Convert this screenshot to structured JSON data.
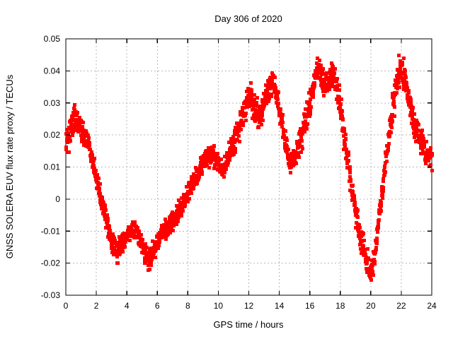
{
  "window": {
    "background_color": "#ffffff",
    "text_color": "#000000",
    "grid_color": "#b8b8b8",
    "border_color": "#000000"
  },
  "chart_data": {
    "type": "scatter",
    "title": "Day 306 of 2020",
    "xlabel": "GPS time / hours",
    "ylabel": "GNSS SOLERA EUV flux rate proxy / TECUs",
    "xlim": [
      0,
      24
    ],
    "ylim": [
      -0.03,
      0.05
    ],
    "x_tick_values": [
      0,
      2,
      4,
      6,
      8,
      10,
      12,
      14,
      16,
      18,
      20,
      22,
      24
    ],
    "x_tick_labels": [
      "0",
      "2",
      "4",
      "6",
      "8",
      "10",
      "12",
      "14",
      "16",
      "18",
      "20",
      "22",
      "24"
    ],
    "y_tick_values": [
      -0.03,
      -0.02,
      -0.01,
      0,
      0.01,
      0.02,
      0.03,
      0.04,
      0.05
    ],
    "y_tick_labels": [
      "-0.03",
      "-0.02",
      "-0.01",
      "0",
      "0.01",
      "0.02",
      "0.03",
      "0.04",
      "0.05"
    ],
    "grid": "dashed-gray",
    "legend": "none",
    "marker": "filled-square",
    "marker_color": "#ff0000",
    "marker_size_px": 5,
    "series": [
      {
        "anchor_format": [
          "gps_hour",
          "value_TECUs",
          "band_spread_TECUs"
        ],
        "anchors": [
          [
            0.0,
            0.018,
            0.005
          ],
          [
            0.3,
            0.022,
            0.004
          ],
          [
            0.6,
            0.026,
            0.004
          ],
          [
            0.9,
            0.023,
            0.0035
          ],
          [
            1.2,
            0.02,
            0.003
          ],
          [
            1.5,
            0.016,
            0.003
          ],
          [
            1.8,
            0.011,
            0.003
          ],
          [
            2.1,
            0.004,
            0.003
          ],
          [
            2.4,
            -0.002,
            0.003
          ],
          [
            2.7,
            -0.008,
            0.003
          ],
          [
            3.0,
            -0.014,
            0.004
          ],
          [
            3.3,
            -0.017,
            0.004
          ],
          [
            3.6,
            -0.014,
            0.0035
          ],
          [
            3.9,
            -0.012,
            0.003
          ],
          [
            4.2,
            -0.01,
            0.003
          ],
          [
            4.5,
            -0.009,
            0.003
          ],
          [
            4.8,
            -0.012,
            0.003
          ],
          [
            5.1,
            -0.016,
            0.003
          ],
          [
            5.4,
            -0.019,
            0.003
          ],
          [
            5.7,
            -0.017,
            0.003
          ],
          [
            6.0,
            -0.013,
            0.003
          ],
          [
            6.4,
            -0.01,
            0.003
          ],
          [
            6.8,
            -0.008,
            0.003
          ],
          [
            7.2,
            -0.005,
            0.003
          ],
          [
            7.6,
            -0.002,
            0.003
          ],
          [
            8.0,
            0.002,
            0.003
          ],
          [
            8.4,
            0.006,
            0.003
          ],
          [
            8.8,
            0.01,
            0.003
          ],
          [
            9.2,
            0.013,
            0.0035
          ],
          [
            9.6,
            0.014,
            0.0035
          ],
          [
            10.0,
            0.011,
            0.003
          ],
          [
            10.3,
            0.009,
            0.003
          ],
          [
            10.6,
            0.013,
            0.003
          ],
          [
            11.0,
            0.018,
            0.004
          ],
          [
            11.4,
            0.023,
            0.0045
          ],
          [
            11.8,
            0.03,
            0.005
          ],
          [
            12.1,
            0.032,
            0.0045
          ],
          [
            12.5,
            0.026,
            0.004
          ],
          [
            12.8,
            0.027,
            0.004
          ],
          [
            13.1,
            0.032,
            0.004
          ],
          [
            13.4,
            0.036,
            0.0035
          ],
          [
            13.7,
            0.035,
            0.0035
          ],
          [
            14.0,
            0.028,
            0.004
          ],
          [
            14.3,
            0.02,
            0.004
          ],
          [
            14.6,
            0.013,
            0.003
          ],
          [
            14.9,
            0.012,
            0.003
          ],
          [
            15.2,
            0.016,
            0.004
          ],
          [
            15.6,
            0.022,
            0.005
          ],
          [
            16.0,
            0.03,
            0.005
          ],
          [
            16.3,
            0.038,
            0.004
          ],
          [
            16.6,
            0.041,
            0.004
          ],
          [
            16.9,
            0.035,
            0.0045
          ],
          [
            17.2,
            0.037,
            0.004
          ],
          [
            17.5,
            0.039,
            0.004
          ],
          [
            17.8,
            0.034,
            0.004
          ],
          [
            18.1,
            0.026,
            0.004
          ],
          [
            18.4,
            0.014,
            0.004
          ],
          [
            18.7,
            0.004,
            0.004
          ],
          [
            19.0,
            -0.004,
            0.004
          ],
          [
            19.3,
            -0.011,
            0.004
          ],
          [
            19.6,
            -0.017,
            0.004
          ],
          [
            19.9,
            -0.022,
            0.0035
          ],
          [
            20.1,
            -0.021,
            0.0035
          ],
          [
            20.4,
            -0.011,
            0.003
          ],
          [
            20.7,
            0.001,
            0.003
          ],
          [
            21.0,
            0.013,
            0.004
          ],
          [
            21.3,
            0.025,
            0.004
          ],
          [
            21.6,
            0.035,
            0.005
          ],
          [
            21.9,
            0.041,
            0.0055
          ],
          [
            22.1,
            0.04,
            0.005
          ],
          [
            22.4,
            0.033,
            0.004
          ],
          [
            22.8,
            0.024,
            0.0045
          ],
          [
            23.2,
            0.019,
            0.004
          ],
          [
            23.6,
            0.0145,
            0.004
          ],
          [
            24.0,
            0.0125,
            0.0035
          ]
        ]
      }
    ]
  }
}
